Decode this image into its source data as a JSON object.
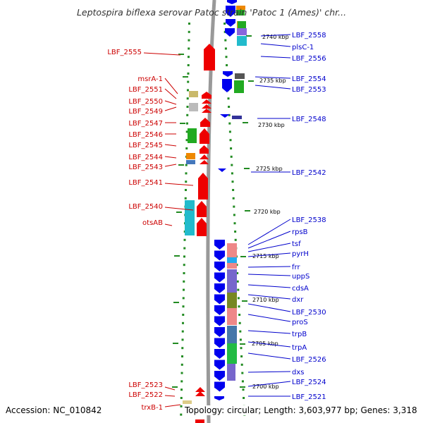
{
  "title": "Leptospira biflexa serovar Patoc strain 'Patoc 1 (Ames)' chr...",
  "accession": "Accession: NC_010842",
  "topology": "Topology: circular; Length: 3,603,977 bp; Genes: 3,318",
  "colors": {
    "reverse_strand": "#ee0000",
    "forward_strand": "#0000ee",
    "left_label": "#cc0000",
    "right_label": "#0000cc",
    "backbone": "#999999",
    "tick": "#228b22"
  },
  "kbp_labels": [
    "2740 kbp",
    "2735 kbp",
    "2730 kbp",
    "2725 kbp",
    "2720 kbp",
    "2715 kbp",
    "2710 kbp",
    "2705 kbp",
    "2700 kbp"
  ],
  "left_labels": [
    "LBF_2555",
    "msrA-1",
    "LBF_2551",
    "LBF_2550",
    "LBF_2549",
    "LBF_2547",
    "LBF_2546",
    "LBF_2545",
    "LBF_2544",
    "LBF_2543",
    "LBF_2541",
    "LBF_2540",
    "otsAB",
    "LBF_2523",
    "LBF_2522",
    "trxB-1"
  ],
  "right_labels": [
    "LBF_2558",
    "plsC-1",
    "LBF_2556",
    "LBF_2554",
    "LBF_2553",
    "LBF_2548",
    "LBF_2542",
    "LBF_2538",
    "rpsB",
    "tsf",
    "pyrH",
    "frr",
    "uppS",
    "cdsA",
    "dxr",
    "LBF_2530",
    "proS",
    "trpB",
    "trpA",
    "LBF_2526",
    "dxs",
    "LBF_2524",
    "LBF_2521"
  ]
}
